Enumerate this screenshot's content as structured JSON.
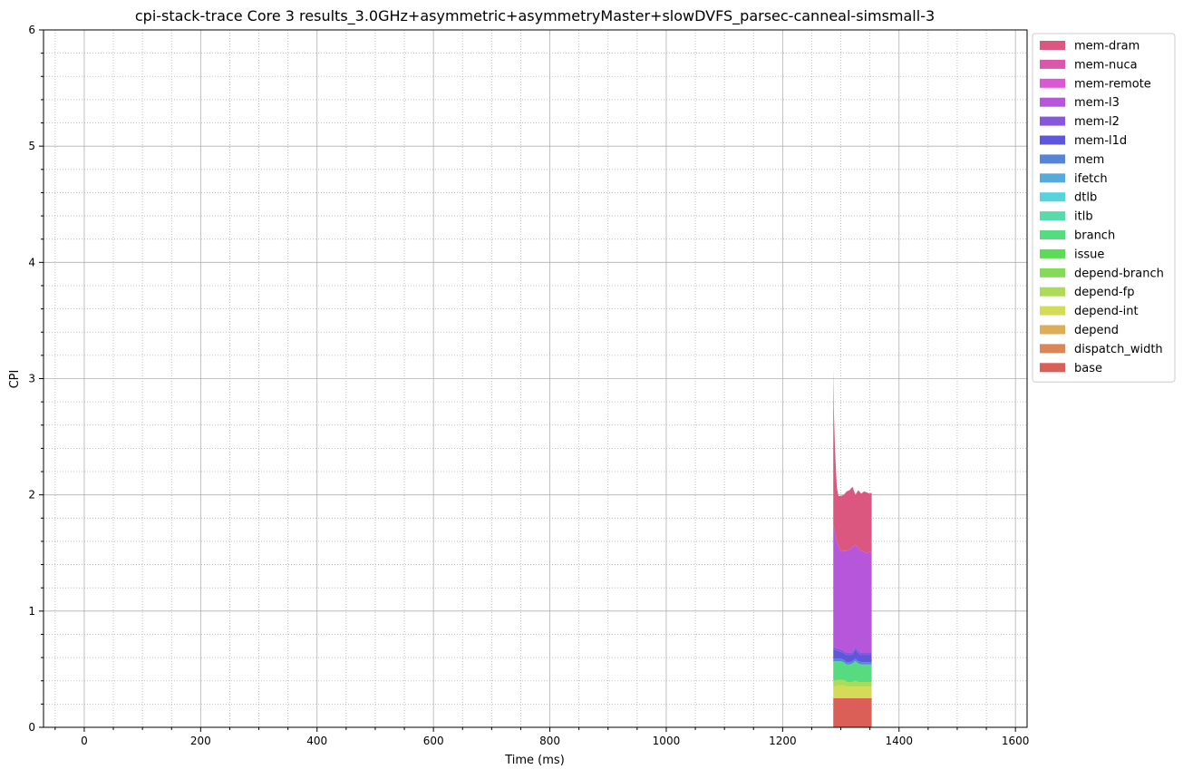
{
  "chart_data": {
    "type": "area",
    "stacked": true,
    "title": "cpi-stack-trace Core 3 results_3.0GHz+asymmetric+asymmetryMaster+slowDVFS_parsec-canneal-simsmall-3",
    "xlabel": "Time (ms)",
    "ylabel": "CPI",
    "xlim": [
      -70,
      1620
    ],
    "ylim": [
      0,
      6
    ],
    "xticks": [
      0,
      200,
      400,
      600,
      800,
      1000,
      1200,
      1400,
      1600
    ],
    "yticks": [
      0,
      1,
      2,
      3,
      4,
      5,
      6
    ],
    "grid": true,
    "minor_grid": true,
    "legend_position": "upper right, outside plot",
    "x": [
      1287,
      1288,
      1290,
      1293,
      1296,
      1300,
      1305,
      1310,
      1315,
      1320,
      1325,
      1330,
      1335,
      1340,
      1345,
      1350,
      1353
    ],
    "series": [
      {
        "name": "base",
        "color": "#db5f57",
        "values": [
          0.25,
          0.25,
          0.25,
          0.25,
          0.25,
          0.25,
          0.25,
          0.25,
          0.25,
          0.25,
          0.25,
          0.25,
          0.25,
          0.25,
          0.25,
          0.25,
          0.25
        ]
      },
      {
        "name": "dispatch_width",
        "color": "#db8657",
        "values": [
          0.0,
          0.0,
          0.0,
          0.0,
          0.0,
          0.0,
          0.0,
          0.0,
          0.0,
          0.0,
          0.0,
          0.0,
          0.0,
          0.0,
          0.0,
          0.0,
          0.0
        ]
      },
      {
        "name": "depend",
        "color": "#dbae57",
        "values": [
          0.0,
          0.0,
          0.0,
          0.0,
          0.0,
          0.0,
          0.0,
          0.0,
          0.0,
          0.0,
          0.0,
          0.0,
          0.0,
          0.0,
          0.0,
          0.0,
          0.0
        ]
      },
      {
        "name": "depend-int",
        "color": "#d3db57",
        "values": [
          0.1,
          0.1,
          0.1,
          0.11,
          0.11,
          0.11,
          0.11,
          0.1,
          0.1,
          0.1,
          0.1,
          0.1,
          0.1,
          0.1,
          0.1,
          0.1,
          0.1
        ]
      },
      {
        "name": "depend-fp",
        "color": "#abdb57",
        "values": [
          0.05,
          0.05,
          0.05,
          0.05,
          0.05,
          0.05,
          0.05,
          0.04,
          0.04,
          0.04,
          0.05,
          0.04,
          0.04,
          0.04,
          0.04,
          0.04,
          0.04
        ]
      },
      {
        "name": "depend-branch",
        "color": "#84db57",
        "values": [
          0.0,
          0.0,
          0.0,
          0.0,
          0.0,
          0.0,
          0.0,
          0.0,
          0.0,
          0.0,
          0.0,
          0.0,
          0.0,
          0.0,
          0.0,
          0.0,
          0.0
        ]
      },
      {
        "name": "issue",
        "color": "#5cdb57",
        "values": [
          0.0,
          0.0,
          0.0,
          0.0,
          0.0,
          0.0,
          0.0,
          0.0,
          0.0,
          0.0,
          0.0,
          0.0,
          0.0,
          0.0,
          0.0,
          0.0,
          0.0
        ]
      },
      {
        "name": "branch",
        "color": "#57db80",
        "values": [
          0.17,
          0.17,
          0.17,
          0.16,
          0.16,
          0.16,
          0.15,
          0.15,
          0.15,
          0.16,
          0.17,
          0.16,
          0.15,
          0.15,
          0.15,
          0.15,
          0.15
        ]
      },
      {
        "name": "itlb",
        "color": "#57dbab",
        "values": [
          0.0,
          0.0,
          0.0,
          0.0,
          0.0,
          0.0,
          0.0,
          0.0,
          0.0,
          0.0,
          0.0,
          0.0,
          0.0,
          0.0,
          0.0,
          0.0,
          0.0
        ]
      },
      {
        "name": "dtlb",
        "color": "#57d3db",
        "values": [
          0.0,
          0.0,
          0.0,
          0.0,
          0.0,
          0.0,
          0.0,
          0.0,
          0.0,
          0.0,
          0.0,
          0.0,
          0.0,
          0.0,
          0.0,
          0.0,
          0.0
        ]
      },
      {
        "name": "ifetch",
        "color": "#57abdb",
        "values": [
          0.0,
          0.0,
          0.0,
          0.0,
          0.0,
          0.0,
          0.0,
          0.0,
          0.0,
          0.0,
          0.0,
          0.0,
          0.0,
          0.0,
          0.0,
          0.0,
          0.0
        ]
      },
      {
        "name": "mem",
        "color": "#5784db",
        "values": [
          0.02,
          0.02,
          0.02,
          0.02,
          0.02,
          0.02,
          0.02,
          0.02,
          0.02,
          0.02,
          0.02,
          0.02,
          0.02,
          0.02,
          0.02,
          0.02,
          0.02
        ]
      },
      {
        "name": "mem-l1d",
        "color": "#5f57db",
        "values": [
          0.08,
          0.08,
          0.08,
          0.07,
          0.07,
          0.06,
          0.06,
          0.06,
          0.06,
          0.06,
          0.08,
          0.07,
          0.06,
          0.06,
          0.06,
          0.06,
          0.06
        ]
      },
      {
        "name": "mem-l2",
        "color": "#8657db",
        "values": [
          0.02,
          0.02,
          0.02,
          0.02,
          0.02,
          0.02,
          0.02,
          0.02,
          0.02,
          0.02,
          0.02,
          0.02,
          0.02,
          0.02,
          0.02,
          0.02,
          0.02
        ]
      },
      {
        "name": "mem-l3",
        "color": "#b657db",
        "values": [
          1.06,
          1.04,
          0.98,
          0.92,
          0.88,
          0.84,
          0.86,
          0.88,
          0.89,
          0.9,
          0.88,
          0.88,
          0.88,
          0.87,
          0.86,
          0.87,
          0.86
        ]
      },
      {
        "name": "mem-remote",
        "color": "#db57d3",
        "values": [
          0.0,
          0.0,
          0.0,
          0.0,
          0.0,
          0.0,
          0.0,
          0.0,
          0.0,
          0.0,
          0.0,
          0.0,
          0.0,
          0.0,
          0.0,
          0.0,
          0.0
        ]
      },
      {
        "name": "mem-nuca",
        "color": "#db57ab",
        "values": [
          0.0,
          0.0,
          0.0,
          0.0,
          0.0,
          0.0,
          0.0,
          0.0,
          0.0,
          0.0,
          0.0,
          0.0,
          0.0,
          0.0,
          0.0,
          0.0,
          0.0
        ]
      },
      {
        "name": "mem-dram",
        "color": "#db5780",
        "values": [
          1.35,
          1.0,
          0.72,
          0.47,
          0.43,
          0.48,
          0.48,
          0.51,
          0.51,
          0.52,
          0.43,
          0.5,
          0.49,
          0.52,
          0.52,
          0.5,
          0.52
        ]
      }
    ]
  }
}
